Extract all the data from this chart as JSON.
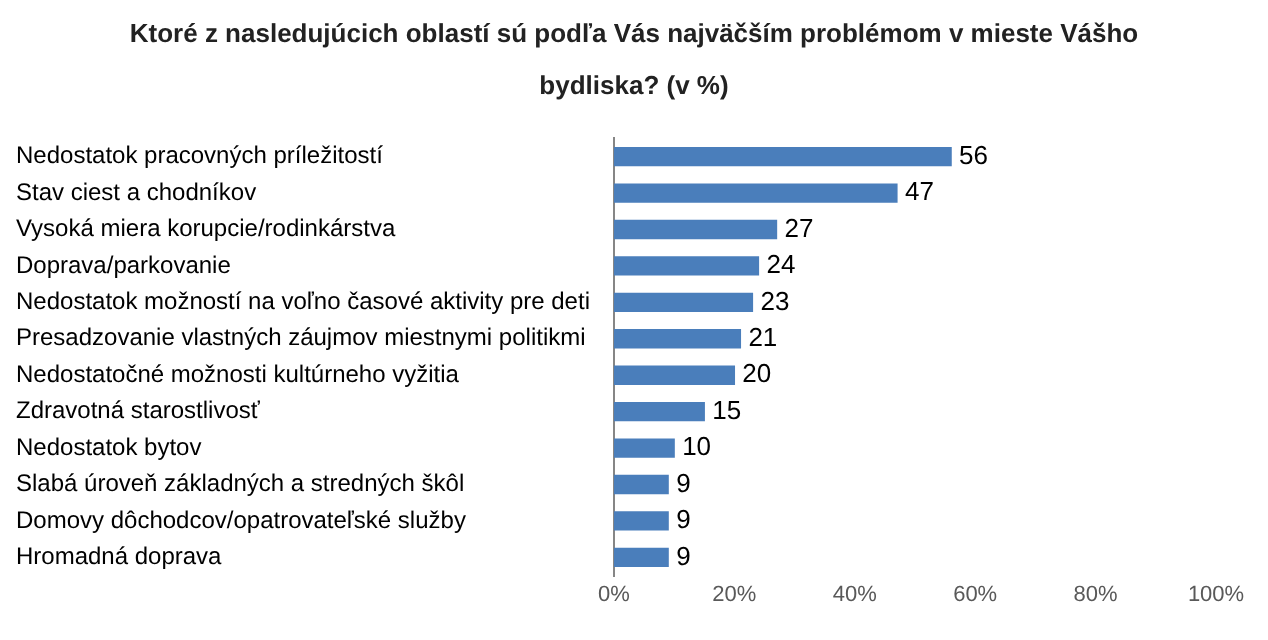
{
  "chart_data": {
    "type": "bar",
    "orientation": "horizontal",
    "title": "Ktoré z nasledujúcich oblastí sú podľa Vás najväčším problémom v mieste Vášho bydliska? (v %)",
    "categories": [
      "Nedostatok pracovných príležitostí",
      "Stav ciest a chodníkov",
      "Vysoká miera korupcie/rodinkárstva",
      "Doprava/parkovanie",
      "Nedostatok možností na voľno časové aktivity pre deti",
      "Presadzovanie vlastných záujmov miestnymi politikmi",
      "Nedostatočné možnosti kultúrneho vyžitia",
      "Zdravotná starostlivosť",
      "Nedostatok bytov",
      "Slabá úroveň základných a stredných škôl",
      "Domovy dôchodcov/opatrovateľské služby",
      "Hromadná doprava"
    ],
    "values": [
      56,
      47,
      27,
      24,
      23,
      21,
      20,
      15,
      10,
      9,
      9,
      9
    ],
    "color": "#4a7ebb",
    "xlim": [
      0,
      100
    ],
    "xticks": [
      {
        "value": 0,
        "label": "0%"
      },
      {
        "value": 20,
        "label": "20%"
      },
      {
        "value": 40,
        "label": "40%"
      },
      {
        "value": 60,
        "label": "60%"
      },
      {
        "value": 80,
        "label": "80%"
      },
      {
        "value": 100,
        "label": "100%"
      }
    ],
    "data_labels": true,
    "grid": false,
    "legend": false
  }
}
